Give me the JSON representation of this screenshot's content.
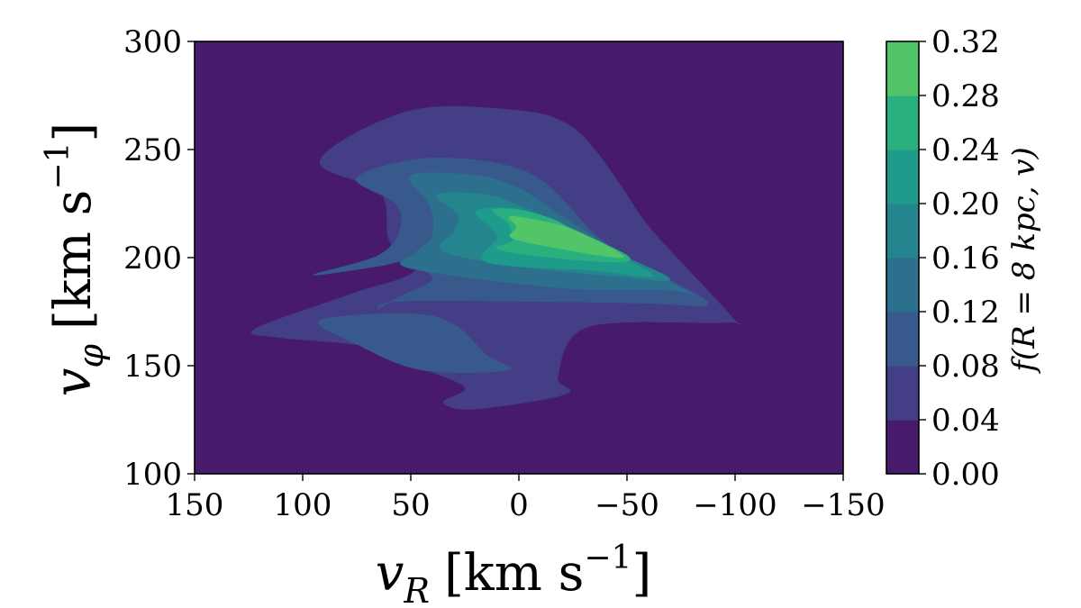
{
  "chart_data": {
    "type": "contourf",
    "xlabel": {
      "var": "v",
      "sub": "R",
      "unit": "[km s",
      "exp": "−1",
      "close": "]"
    },
    "ylabel": {
      "var": "v",
      "sub": "φ",
      "unit": "[km s",
      "exp": "−1",
      "close": "]"
    },
    "xlim": [
      150,
      -150
    ],
    "ylim": [
      100,
      300
    ],
    "x_ticks": [
      "150",
      "100",
      "50",
      "0",
      "−50",
      "−100",
      "−150"
    ],
    "y_ticks": [
      "100",
      "150",
      "200",
      "250",
      "300"
    ],
    "colorbar": {
      "label": "f(R = 8 kpc, v)",
      "levels": [
        0.0,
        0.04,
        0.08,
        0.12,
        0.16,
        0.2,
        0.24,
        0.28,
        0.32
      ],
      "tick_labels": [
        "0.00",
        "0.04",
        "0.08",
        "0.12",
        "0.16",
        "0.20",
        "0.24",
        "0.28",
        "0.32"
      ],
      "colors": [
        "#481a6c",
        "#433e85",
        "#38598c",
        "#2d708e",
        "#25858e",
        "#1e9b8a",
        "#2ab07f",
        "#52c569",
        "#86d549",
        "#c2df23"
      ]
    },
    "contours": [
      {
        "level_index": 1,
        "points": [
          [
            92,
            245
          ],
          [
            64,
            230
          ],
          [
            60,
            208
          ],
          [
            48,
            194
          ],
          [
            78,
            183
          ],
          [
            122,
            167
          ],
          [
            110,
            163
          ],
          [
            70,
            159
          ],
          [
            48,
            150
          ],
          [
            25,
            140
          ],
          [
            35,
            133
          ],
          [
            20,
            130
          ],
          [
            -22,
            137
          ],
          [
            -18,
            145
          ],
          [
            -32,
            168
          ],
          [
            -95,
            170
          ],
          [
            -98,
            173
          ],
          [
            -62,
            212
          ],
          [
            -48,
            232
          ],
          [
            -35,
            250
          ],
          [
            -22,
            262
          ],
          [
            0,
            268
          ],
          [
            50,
            268
          ]
        ]
      },
      {
        "level_index": 2,
        "points": [
          [
            75,
            237
          ],
          [
            57,
            225
          ],
          [
            55,
            213
          ],
          [
            65,
            201
          ],
          [
            95,
            192
          ],
          [
            65,
            196
          ],
          [
            52,
            198
          ],
          [
            40,
            190
          ],
          [
            55,
            182
          ],
          [
            65,
            176
          ],
          [
            50,
            180
          ],
          [
            -55,
            179
          ],
          [
            -87,
            178
          ],
          [
            -75,
            187
          ],
          [
            -55,
            196
          ],
          [
            -35,
            211
          ],
          [
            -5,
            239
          ],
          [
            40,
            246
          ]
        ]
      },
      {
        "level_index": 2,
        "points": [
          [
            92,
            171
          ],
          [
            75,
            160
          ],
          [
            45,
            148
          ],
          [
            5,
            148
          ],
          [
            15,
            155
          ],
          [
            30,
            169
          ],
          [
            50,
            174
          ]
        ]
      },
      {
        "level_index": 3,
        "points": [
          [
            50,
            238
          ],
          [
            41,
            224
          ],
          [
            40,
            210
          ],
          [
            48,
            202
          ],
          [
            50,
            195
          ],
          [
            -20,
            186
          ],
          [
            -70,
            185
          ],
          [
            -80,
            183
          ],
          [
            -55,
            197
          ],
          [
            -20,
            219
          ],
          [
            0,
            232
          ],
          [
            20,
            238
          ]
        ]
      },
      {
        "level_index": 4,
        "points": [
          [
            38,
            229
          ],
          [
            28,
            220
          ],
          [
            30,
            212
          ],
          [
            35,
            203
          ],
          [
            0,
            196
          ],
          [
            -50,
            191
          ],
          [
            -70,
            190
          ],
          [
            -50,
            200
          ],
          [
            -25,
            212
          ],
          [
            -5,
            222
          ],
          [
            15,
            229
          ]
        ]
      },
      {
        "level_index": 5,
        "points": [
          [
            20,
            221
          ],
          [
            10,
            210
          ],
          [
            15,
            198
          ],
          [
            -35,
            194
          ],
          [
            -62,
            192
          ],
          [
            -30,
            208
          ],
          [
            -10,
            219
          ],
          [
            5,
            223
          ]
        ]
      },
      {
        "level_index": 6,
        "points": [
          [
            12,
            222
          ],
          [
            5,
            216
          ],
          [
            3,
            208
          ],
          [
            10,
            204
          ],
          [
            -15,
            200
          ],
          [
            -45,
            198
          ],
          [
            -50,
            201
          ],
          [
            -25,
            213
          ],
          [
            -15,
            218
          ],
          [
            0,
            222
          ]
        ]
      },
      {
        "level_index": 7,
        "points": [
          [
            4,
            219
          ],
          [
            1,
            214
          ],
          [
            3,
            209
          ],
          [
            -20,
            204
          ],
          [
            -46,
            200
          ],
          [
            -45,
            203
          ],
          [
            -25,
            213
          ],
          [
            -10,
            217
          ]
        ]
      }
    ]
  }
}
